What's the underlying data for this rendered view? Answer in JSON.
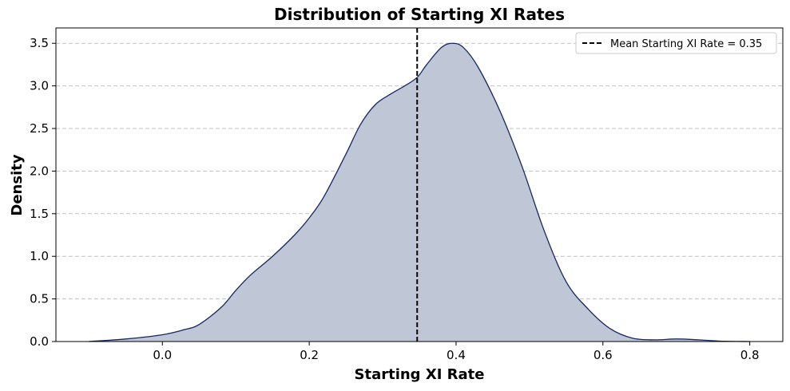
{
  "chart_data": {
    "type": "area",
    "title": "Distribution of Starting XI Rates",
    "xlabel": "Starting XI Rate",
    "ylabel": "Density",
    "xlim": [
      -0.145,
      0.845
    ],
    "ylim": [
      0,
      3.68
    ],
    "xticks": [
      0.0,
      0.2,
      0.4,
      0.6,
      0.8
    ],
    "yticks": [
      0.0,
      0.5,
      1.0,
      1.5,
      2.0,
      2.5,
      3.0,
      3.5
    ],
    "grid": "y-dashed",
    "legend_position": "top-right",
    "series": [
      {
        "kind": "kde",
        "x": [
          -0.1,
          -0.05,
          0.0,
          0.03,
          0.05,
          0.08,
          0.1,
          0.12,
          0.15,
          0.18,
          0.2,
          0.22,
          0.25,
          0.27,
          0.29,
          0.31,
          0.33,
          0.347,
          0.36,
          0.38,
          0.395,
          0.41,
          0.43,
          0.46,
          0.49,
          0.52,
          0.55,
          0.58,
          0.61,
          0.64,
          0.67,
          0.7,
          0.73,
          0.76,
          0.8
        ],
        "y": [
          0.0,
          0.03,
          0.08,
          0.14,
          0.2,
          0.4,
          0.6,
          0.78,
          1.0,
          1.25,
          1.45,
          1.7,
          2.2,
          2.55,
          2.78,
          2.9,
          3.0,
          3.1,
          3.25,
          3.45,
          3.5,
          3.45,
          3.22,
          2.7,
          2.05,
          1.3,
          0.7,
          0.38,
          0.15,
          0.04,
          0.02,
          0.03,
          0.02,
          0.005,
          0.0
        ]
      }
    ],
    "mean_line": {
      "x": 0.347,
      "label": "Mean Starting XI Rate = 0.35"
    },
    "colors": {
      "line": "#14285e",
      "fill": "#bfc6d5",
      "mean": "#000000",
      "grid": "#c0c0c0"
    }
  }
}
